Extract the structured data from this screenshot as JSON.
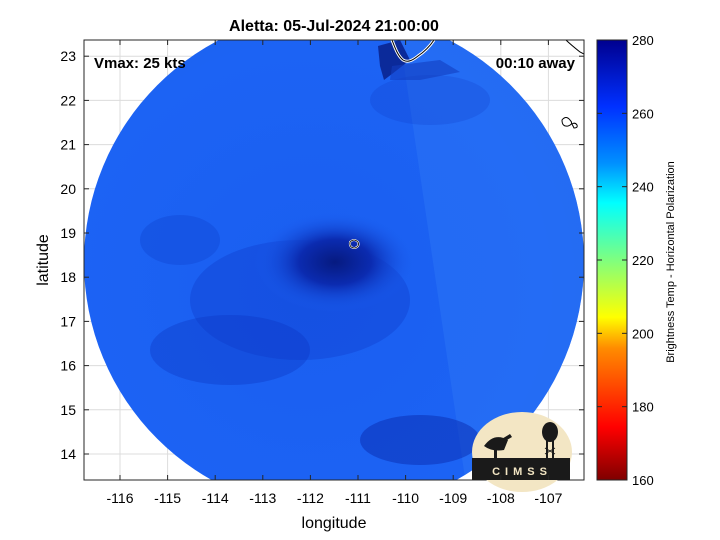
{
  "figure": {
    "title": "Aletta: 05-Jul-2024 21:00:00",
    "vmax_label": "Vmax: 25 kts",
    "time_label": "00:10 away",
    "xlabel": "longitude",
    "ylabel": "latitude",
    "xticks": [
      "-116",
      "-115",
      "-114",
      "-113",
      "-112",
      "-111",
      "-110",
      "-109",
      "-108",
      "-107"
    ],
    "yticks": [
      "14",
      "15",
      "16",
      "17",
      "18",
      "19",
      "20",
      "21",
      "22",
      "23"
    ],
    "colorbar": {
      "label": "Brightness Temp - Horizontal Polarization",
      "ticks": [
        "160",
        "180",
        "200",
        "220",
        "240",
        "260",
        "280"
      ],
      "min": 160,
      "max": 280
    },
    "logo_text": "CIMSS",
    "storm_center": {
      "lon": -111.0,
      "lat": 18.85
    },
    "colors": {
      "swath_base": "#1a5ff2",
      "swath_dark": "#0a2fb8",
      "storm_core": "#071f8c",
      "coast": "#ffffff"
    }
  }
}
